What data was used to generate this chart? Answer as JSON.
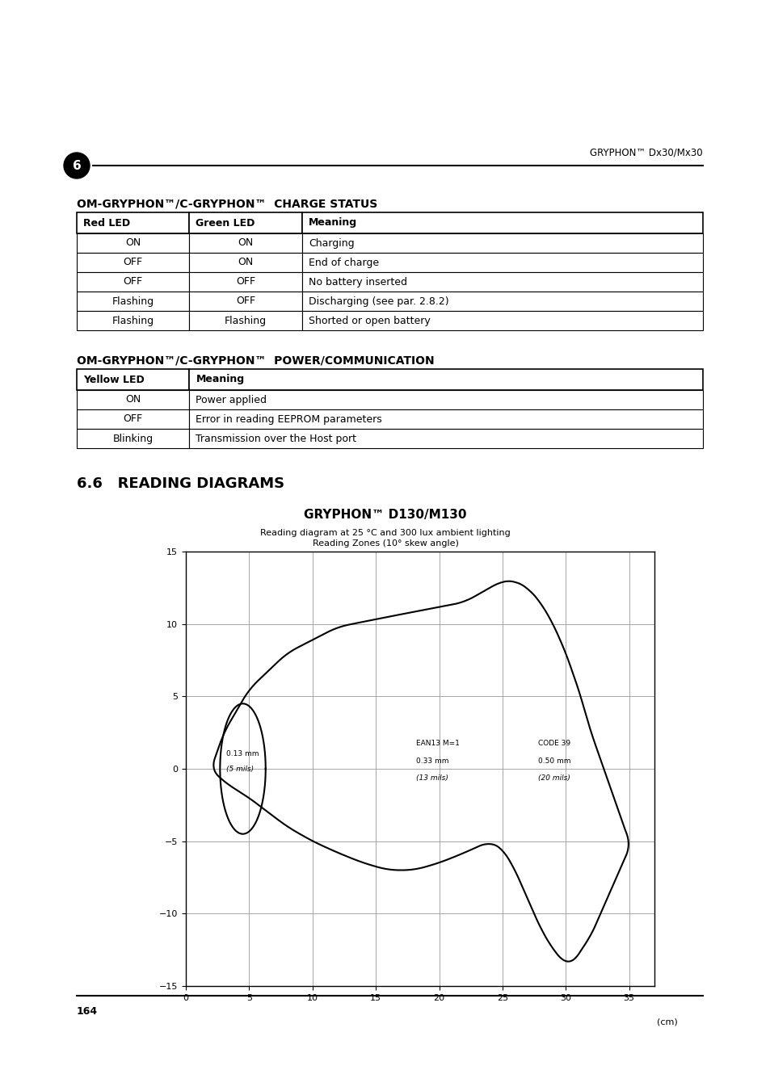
{
  "page_header_right": "GRYPHON™ Dx30/Mx30",
  "chapter_num": "6",
  "section1_title": "OM-GRYPHON™/C-GRYPHON™  CHARGE STATUS",
  "charge_table_headers": [
    "Red LED",
    "Green LED",
    "Meaning"
  ],
  "charge_table_rows": [
    [
      "ON",
      "ON",
      "Charging"
    ],
    [
      "OFF",
      "ON",
      "End of charge"
    ],
    [
      "OFF",
      "OFF",
      "No battery inserted"
    ],
    [
      "Flashing",
      "OFF",
      "Discharging (see par. 2.8.2)"
    ],
    [
      "Flashing",
      "Flashing",
      "Shorted or open battery"
    ]
  ],
  "section2_title": "OM-GRYPHON™/C-GRYPHON™  POWER/COMMUNICATION",
  "power_table_headers": [
    "Yellow LED",
    "Meaning"
  ],
  "power_table_rows": [
    [
      "ON",
      "Power applied"
    ],
    [
      "OFF",
      "Error in reading EEPROM parameters"
    ],
    [
      "Blinking",
      "Transmission over the Host port"
    ]
  ],
  "section3_heading": "6.6   READING DIAGRAMS",
  "chart_title": "GRYPHON™ D130/M130",
  "chart_subtitle_line1": "Reading diagram at 25 °C and 300 lux ambient lighting",
  "chart_subtitle_line2": "Reading Zones (10° skew angle)",
  "chart_xlabel": "(cm)",
  "chart_xlim": [
    0,
    37
  ],
  "chart_ylim": [
    -15,
    15
  ],
  "chart_xticks": [
    0,
    5,
    10,
    15,
    20,
    25,
    30,
    35
  ],
  "chart_yticks": [
    -15,
    -10,
    -5,
    0,
    5,
    10,
    15
  ],
  "annotation1_line1": "0.13 mm",
  "annotation1_line2": "(5 mils)",
  "annotation2_line1": "EAN13 M=1",
  "annotation2_line2": "0.33 mm",
  "annotation2_line3": "(13 mils)",
  "annotation3_line1": "CODE 39",
  "annotation3_line2": "0.50 mm",
  "annotation3_line3": "(20 mils)",
  "page_number": "164",
  "bg_color": "#ffffff",
  "text_color": "#000000"
}
